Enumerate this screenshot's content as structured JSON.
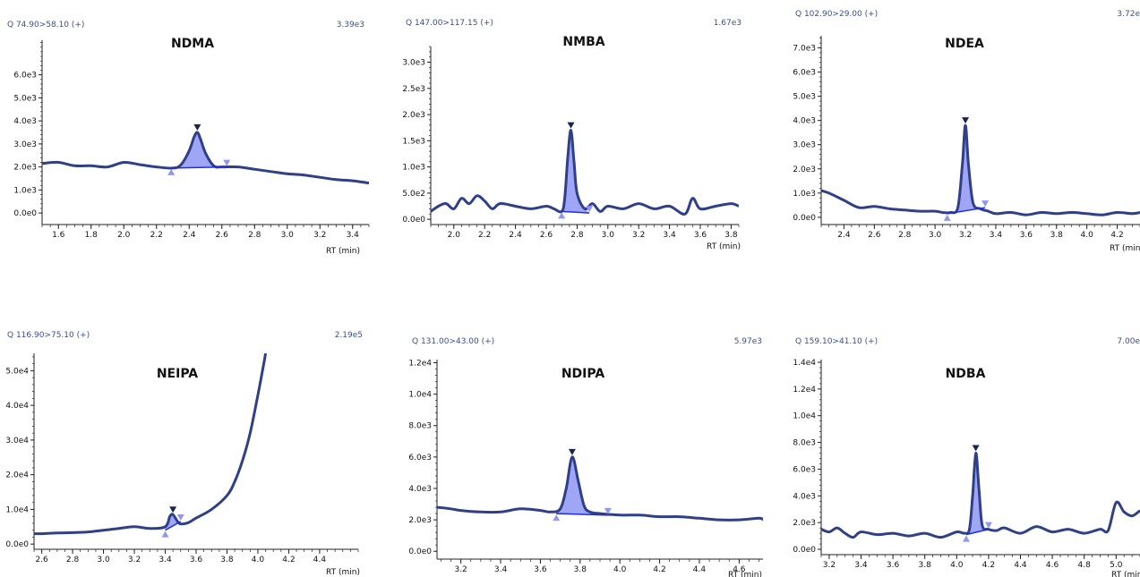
{
  "chart_data": [
    {
      "type": "line",
      "title": "NDMA",
      "header_left": "Q 74.90>58.10 (+)",
      "header_right": "3.39e3",
      "xlabel": "RT (min)",
      "xlim": [
        1.5,
        3.5
      ],
      "ylim": [
        -500,
        7500
      ],
      "xticks": [
        "1.6",
        "1.8",
        "2.0",
        "2.2",
        "2.4",
        "2.6",
        "2.8",
        "3.0",
        "3.2",
        "3.4"
      ],
      "yticks": [
        "0.0e0",
        "1.0e3",
        "2.0e3",
        "3.0e3",
        "4.0e3",
        "5.0e3",
        "6.0e3"
      ],
      "ytick_values": [
        0,
        1000,
        2000,
        3000,
        4000,
        5000,
        6000
      ],
      "series": [
        {
          "x": [
            1.5,
            1.6,
            1.7,
            1.8,
            1.9,
            2.0,
            2.1,
            2.2,
            2.3,
            2.35,
            2.4,
            2.43,
            2.45,
            2.47,
            2.5,
            2.55,
            2.6,
            2.7,
            2.8,
            2.9,
            3.0,
            3.1,
            3.2,
            3.3,
            3.4,
            3.5
          ],
          "values": [
            2150,
            2200,
            2050,
            2050,
            2000,
            2200,
            2100,
            2000,
            1950,
            2100,
            2700,
            3300,
            3500,
            3200,
            2600,
            2050,
            2000,
            2000,
            1900,
            1800,
            1700,
            1650,
            1550,
            1450,
            1400,
            1300
          ]
        }
      ],
      "peak": {
        "apex": [
          2.45,
          3500
        ],
        "start": [
          2.29,
          1950
        ],
        "end": [
          2.63,
          2000
        ]
      }
    },
    {
      "type": "line",
      "title": "NMBA",
      "header_left": "Q 147.00>117.15 (+)",
      "header_right": "1.67e3",
      "xlabel": "RT (min)",
      "xlim": [
        1.85,
        3.85
      ],
      "ylim": [
        -100,
        3300
      ],
      "xticks": [
        "2.0",
        "2.2",
        "2.4",
        "2.6",
        "2.8",
        "3.0",
        "3.2",
        "3.4",
        "3.6",
        "3.8"
      ],
      "yticks": [
        "0.0e0",
        "5.0e2",
        "1.0e3",
        "1.5e3",
        "2.0e3",
        "2.5e3",
        "3.0e3"
      ],
      "ytick_values": [
        0,
        500,
        1000,
        1500,
        2000,
        2500,
        3000
      ],
      "series": [
        {
          "x": [
            1.85,
            1.9,
            1.95,
            2.0,
            2.05,
            2.1,
            2.15,
            2.2,
            2.25,
            2.3,
            2.4,
            2.5,
            2.6,
            2.65,
            2.7,
            2.72,
            2.74,
            2.76,
            2.78,
            2.8,
            2.85,
            2.9,
            2.95,
            3.0,
            3.1,
            3.2,
            3.3,
            3.4,
            3.5,
            3.55,
            3.6,
            3.7,
            3.8,
            3.85
          ],
          "values": [
            150,
            250,
            300,
            200,
            400,
            300,
            450,
            350,
            200,
            300,
            250,
            200,
            250,
            200,
            150,
            400,
            1200,
            1700,
            1100,
            500,
            200,
            300,
            150,
            250,
            200,
            300,
            200,
            250,
            100,
            400,
            200,
            250,
            300,
            250
          ]
        }
      ],
      "peak": {
        "apex": [
          2.76,
          1700
        ],
        "start": [
          2.7,
          150
        ],
        "end": [
          2.88,
          120
        ]
      }
    },
    {
      "type": "line",
      "title": "NDEA",
      "header_left": "Q 102.90>29.00 (+)",
      "header_right": "3.72e",
      "xlabel": "RT (min)",
      "xlim": [
        2.25,
        4.35
      ],
      "ylim": [
        -300,
        7500
      ],
      "xticks": [
        "2.4",
        "2.6",
        "2.8",
        "3.0",
        "3.2",
        "3.4",
        "3.6",
        "3.8",
        "4.0",
        "4.2"
      ],
      "yticks": [
        "0.0e0",
        "1.0e3",
        "2.0e3",
        "3.0e3",
        "4.0e3",
        "5.0e3",
        "6.0e3",
        "7.0e3"
      ],
      "ytick_values": [
        0,
        1000,
        2000,
        3000,
        4000,
        5000,
        6000,
        7000
      ],
      "series": [
        {
          "x": [
            2.25,
            2.3,
            2.4,
            2.5,
            2.6,
            2.7,
            2.8,
            2.9,
            3.0,
            3.05,
            3.1,
            3.15,
            3.18,
            3.2,
            3.22,
            3.25,
            3.3,
            3.35,
            3.4,
            3.5,
            3.6,
            3.7,
            3.8,
            3.9,
            4.0,
            4.1,
            4.2,
            4.3,
            4.35
          ],
          "values": [
            1100,
            1000,
            700,
            400,
            450,
            350,
            300,
            250,
            250,
            200,
            200,
            400,
            2200,
            3800,
            2200,
            600,
            350,
            250,
            150,
            200,
            100,
            200,
            150,
            200,
            150,
            100,
            200,
            150,
            200
          ]
        }
      ],
      "peak": {
        "apex": [
          3.2,
          3800
        ],
        "start": [
          3.08,
          150
        ],
        "end": [
          3.33,
          400
        ]
      }
    },
    {
      "type": "line",
      "title": "NEIPA",
      "header_left": "Q 116.90>75.10 (+)",
      "header_right": "2.19e5",
      "xlabel": "RT (min)",
      "xlim": [
        2.55,
        4.65
      ],
      "ylim": [
        -1500,
        55000
      ],
      "xticks": [
        "2.6",
        "2.8",
        "3.0",
        "3.2",
        "3.4",
        "3.6",
        "3.8",
        "4.0",
        "4.2",
        "4.4"
      ],
      "yticks": [
        "0.0e0",
        "1.0e4",
        "2.0e4",
        "3.0e4",
        "4.0e4",
        "5.0e4"
      ],
      "ytick_values": [
        0,
        10000,
        20000,
        30000,
        40000,
        50000
      ],
      "series": [
        {
          "x": [
            2.55,
            2.6,
            2.7,
            2.8,
            2.9,
            3.0,
            3.1,
            3.2,
            3.3,
            3.4,
            3.43,
            3.45,
            3.48,
            3.5,
            3.55,
            3.6,
            3.7,
            3.8,
            3.85,
            3.9,
            3.95,
            4.0,
            4.03,
            4.05
          ],
          "values": [
            3000,
            3000,
            3200,
            3300,
            3500,
            4000,
            4500,
            5000,
            4500,
            5000,
            8000,
            8500,
            6500,
            5800,
            6200,
            7500,
            10000,
            14000,
            18000,
            24000,
            32000,
            43000,
            50000,
            55000
          ]
        }
      ],
      "peak": {
        "apex": [
          3.45,
          8500
        ],
        "start": [
          3.4,
          4000
        ],
        "end": [
          3.5,
          6500
        ]
      }
    },
    {
      "type": "line",
      "title": "NDIPA",
      "header_left": "Q 131.00>43.00 (+)",
      "header_right": "5.97e3",
      "xlabel": "RT (min)",
      "xlim": [
        3.08,
        4.72
      ],
      "ylim": [
        -500,
        12200
      ],
      "xticks": [
        "3.2",
        "3.4",
        "3.6",
        "3.8",
        "4.0",
        "4.2",
        "4.4",
        "4.6"
      ],
      "yticks": [
        "0.0e0",
        "2.0e3",
        "4.0e3",
        "6.0e3",
        "8.0e3",
        "1.0e4",
        "1.2e4"
      ],
      "ytick_values": [
        0,
        2000,
        4000,
        6000,
        8000,
        10000,
        12000
      ],
      "series": [
        {
          "x": [
            3.08,
            3.15,
            3.2,
            3.3,
            3.4,
            3.5,
            3.6,
            3.65,
            3.7,
            3.73,
            3.76,
            3.79,
            3.82,
            3.85,
            3.9,
            4.0,
            4.1,
            4.2,
            4.3,
            4.4,
            4.5,
            4.6,
            4.7,
            4.72
          ],
          "values": [
            2800,
            2700,
            2600,
            2500,
            2500,
            2700,
            2600,
            2500,
            2700,
            4000,
            6000,
            4500,
            2900,
            2500,
            2400,
            2300,
            2300,
            2200,
            2200,
            2100,
            2000,
            2000,
            2100,
            2000
          ]
        }
      ],
      "peak": {
        "apex": [
          3.76,
          6000
        ],
        "start": [
          3.68,
          2400
        ],
        "end": [
          3.94,
          2300
        ]
      }
    },
    {
      "type": "line",
      "title": "NDBA",
      "header_left": "Q 159.10>41.10 (+)",
      "header_right": "7.00e",
      "xlabel": "RT (min)",
      "xlim": [
        3.15,
        5.15
      ],
      "ylim": [
        -400,
        14200
      ],
      "xticks": [
        "3.2",
        "3.4",
        "3.6",
        "3.8",
        "4.0",
        "4.2",
        "4.4",
        "4.6",
        "4.8",
        "5.0"
      ],
      "yticks": [
        "0.0e0",
        "2.0e3",
        "4.0e3",
        "6.0e3",
        "8.0e3",
        "1.0e4",
        "1.2e4",
        "1.4e4"
      ],
      "ytick_values": [
        0,
        2000,
        4000,
        6000,
        8000,
        10000,
        12000,
        14000
      ],
      "series": [
        {
          "x": [
            3.15,
            3.2,
            3.25,
            3.3,
            3.35,
            3.4,
            3.5,
            3.6,
            3.7,
            3.8,
            3.9,
            4.0,
            4.05,
            4.08,
            4.1,
            4.12,
            4.14,
            4.16,
            4.2,
            4.25,
            4.3,
            4.4,
            4.5,
            4.6,
            4.7,
            4.8,
            4.9,
            4.95,
            5.0,
            5.05,
            5.1,
            5.15
          ],
          "values": [
            1500,
            1300,
            1600,
            1200,
            900,
            1300,
            1100,
            1200,
            1000,
            1200,
            900,
            1300,
            1200,
            1500,
            4000,
            7200,
            4500,
            1800,
            1500,
            1400,
            1600,
            1200,
            1700,
            1300,
            1500,
            1200,
            1500,
            1400,
            3500,
            2800,
            2500,
            2900
          ]
        }
      ],
      "peak": {
        "apex": [
          4.12,
          7200
        ],
        "start": [
          4.06,
          1100
        ],
        "end": [
          4.2,
          1500
        ]
      }
    }
  ]
}
